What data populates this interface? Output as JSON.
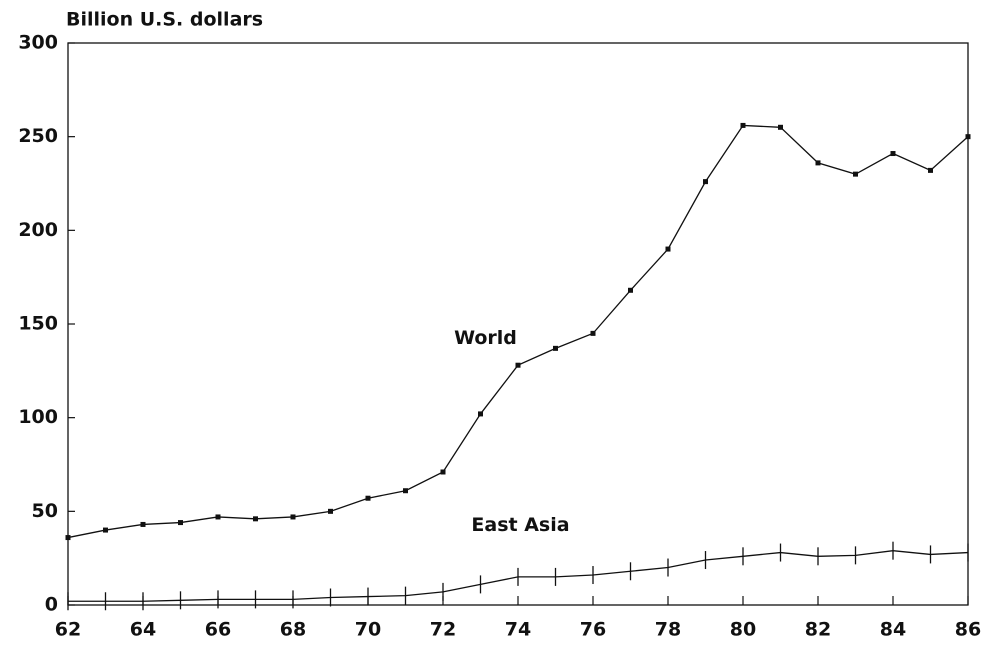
{
  "chart_data": {
    "type": "line",
    "y_label": "Billion U.S. dollars",
    "x": [
      62,
      63,
      64,
      65,
      66,
      67,
      68,
      69,
      70,
      71,
      72,
      73,
      74,
      75,
      76,
      77,
      78,
      79,
      80,
      81,
      82,
      83,
      84,
      85,
      86
    ],
    "series": [
      {
        "name": "World",
        "color": "#111111",
        "marker": "square",
        "values": [
          36,
          40,
          43,
          44,
          47,
          46,
          47,
          50,
          57,
          61,
          71,
          102,
          128,
          137,
          145,
          168,
          190,
          226,
          256,
          255,
          236,
          230,
          241,
          232,
          250
        ]
      },
      {
        "name": "East Asia",
        "color": "#111111",
        "marker": "tick",
        "values": [
          2,
          2,
          2,
          2.5,
          3,
          3,
          3,
          4,
          4.5,
          5,
          7,
          11,
          15,
          15,
          16,
          18,
          20,
          24,
          26,
          28,
          26,
          26.5,
          29,
          27,
          28
        ]
      }
    ],
    "xlim": [
      62,
      86
    ],
    "xticks": [
      62,
      64,
      66,
      68,
      70,
      72,
      74,
      76,
      78,
      80,
      82,
      84,
      86
    ],
    "ylim": [
      0,
      300
    ],
    "yticks": [
      0,
      50,
      100,
      150,
      200,
      250,
      300
    ],
    "annotations": [
      {
        "text": "World",
        "x": 75,
        "y": 137
      },
      {
        "text": "East Asia",
        "x": 75,
        "y": 28
      }
    ]
  }
}
